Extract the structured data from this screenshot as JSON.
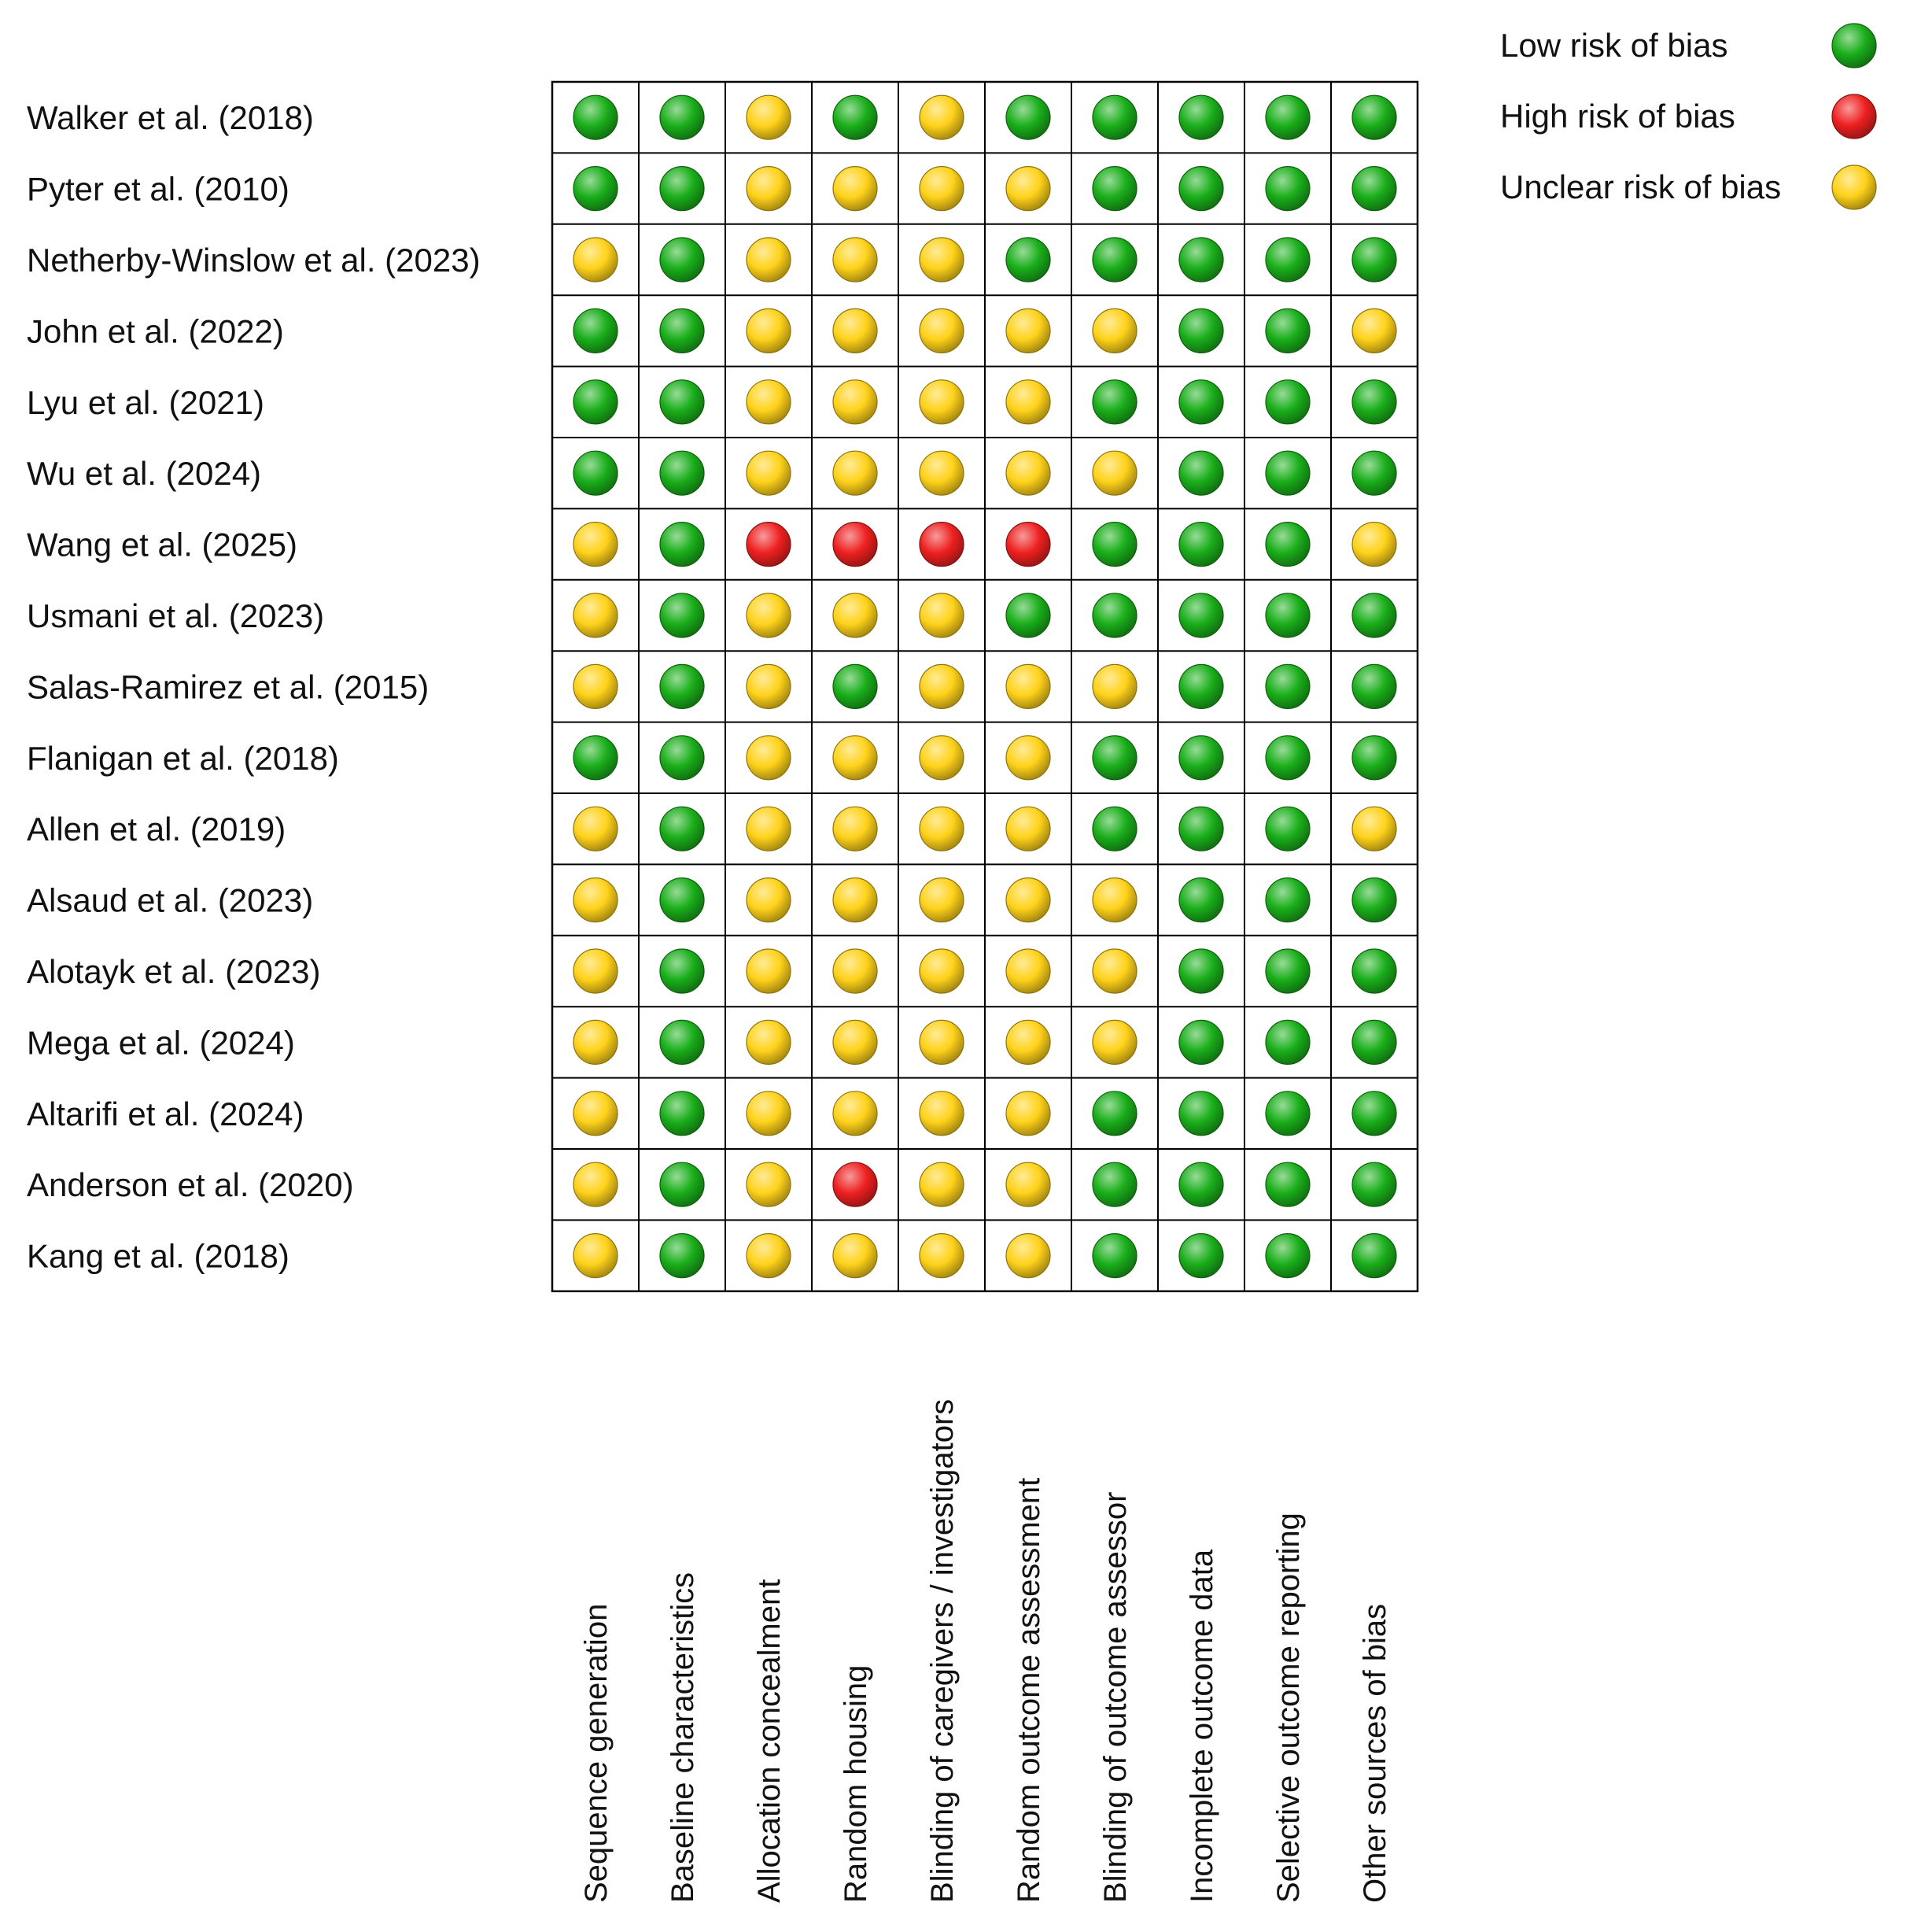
{
  "chart_data": {
    "type": "table",
    "title": "",
    "colors": {
      "low": "#1aae1a",
      "high": "#ee2020",
      "unclear": "#ffd21a"
    },
    "legend": [
      {
        "key": "low",
        "label": "Low risk of bias"
      },
      {
        "key": "high",
        "label": "High risk of bias"
      },
      {
        "key": "unclear",
        "label": "Unclear risk of bias"
      }
    ],
    "legend_position": "top-right",
    "domains": [
      "Sequence generation",
      "Baseline characteristics",
      "Allocation concealment",
      "Random housing",
      "Blinding of caregivers / investigators",
      "Random outcome assessment",
      "Blinding of outcome assessor",
      "Incomplete outcome data",
      "Selective outcome reporting",
      "Other sources of bias"
    ],
    "studies": [
      {
        "label": "Walker et al. (2018)",
        "ratings": [
          "low",
          "low",
          "unclear",
          "low",
          "unclear",
          "low",
          "low",
          "low",
          "low",
          "low"
        ]
      },
      {
        "label": "Pyter et al. (2010)",
        "ratings": [
          "low",
          "low",
          "unclear",
          "unclear",
          "unclear",
          "unclear",
          "low",
          "low",
          "low",
          "low"
        ]
      },
      {
        "label": "Netherby-Winslow et al. (2023)",
        "ratings": [
          "unclear",
          "low",
          "unclear",
          "unclear",
          "unclear",
          "low",
          "low",
          "low",
          "low",
          "low"
        ]
      },
      {
        "label": "John et al. (2022)",
        "ratings": [
          "low",
          "low",
          "unclear",
          "unclear",
          "unclear",
          "unclear",
          "unclear",
          "low",
          "low",
          "unclear"
        ]
      },
      {
        "label": "Lyu et al. (2021)",
        "ratings": [
          "low",
          "low",
          "unclear",
          "unclear",
          "unclear",
          "unclear",
          "low",
          "low",
          "low",
          "low"
        ]
      },
      {
        "label": "Wu et al. (2024)",
        "ratings": [
          "low",
          "low",
          "unclear",
          "unclear",
          "unclear",
          "unclear",
          "unclear",
          "low",
          "low",
          "low"
        ]
      },
      {
        "label": "Wang et al. (2025)",
        "ratings": [
          "unclear",
          "low",
          "high",
          "high",
          "high",
          "high",
          "low",
          "low",
          "low",
          "unclear"
        ]
      },
      {
        "label": "Usmani et al. (2023)",
        "ratings": [
          "unclear",
          "low",
          "unclear",
          "unclear",
          "unclear",
          "low",
          "low",
          "low",
          "low",
          "low"
        ]
      },
      {
        "label": "Salas-Ramirez et al. (2015)",
        "ratings": [
          "unclear",
          "low",
          "unclear",
          "low",
          "unclear",
          "unclear",
          "unclear",
          "low",
          "low",
          "low"
        ]
      },
      {
        "label": "Flanigan et al. (2018)",
        "ratings": [
          "low",
          "low",
          "unclear",
          "unclear",
          "unclear",
          "unclear",
          "low",
          "low",
          "low",
          "low"
        ]
      },
      {
        "label": "Allen et al. (2019)",
        "ratings": [
          "unclear",
          "low",
          "unclear",
          "unclear",
          "unclear",
          "unclear",
          "low",
          "low",
          "low",
          "unclear"
        ]
      },
      {
        "label": "Alsaud et al. (2023)",
        "ratings": [
          "unclear",
          "low",
          "unclear",
          "unclear",
          "unclear",
          "unclear",
          "unclear",
          "low",
          "low",
          "low"
        ]
      },
      {
        "label": "Alotayk et al. (2023)",
        "ratings": [
          "unclear",
          "low",
          "unclear",
          "unclear",
          "unclear",
          "unclear",
          "unclear",
          "low",
          "low",
          "low"
        ]
      },
      {
        "label": "Mega et al. (2024)",
        "ratings": [
          "unclear",
          "low",
          "unclear",
          "unclear",
          "unclear",
          "unclear",
          "unclear",
          "low",
          "low",
          "low"
        ]
      },
      {
        "label": "Altarifi et al. (2024)",
        "ratings": [
          "unclear",
          "low",
          "unclear",
          "unclear",
          "unclear",
          "unclear",
          "low",
          "low",
          "low",
          "low"
        ]
      },
      {
        "label": "Anderson et al. (2020)",
        "ratings": [
          "unclear",
          "low",
          "unclear",
          "high",
          "unclear",
          "unclear",
          "low",
          "low",
          "low",
          "low"
        ]
      },
      {
        "label": "Kang et al. (2018)",
        "ratings": [
          "unclear",
          "low",
          "unclear",
          "unclear",
          "unclear",
          "unclear",
          "low",
          "low",
          "low",
          "low"
        ]
      }
    ]
  }
}
